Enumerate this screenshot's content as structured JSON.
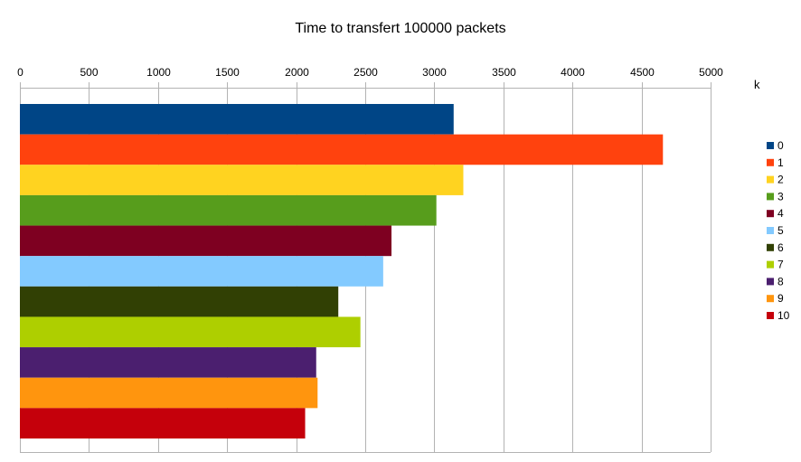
{
  "chart_data": {
    "type": "bar",
    "orientation": "horizontal",
    "title": "Time to transfert 100000 packets",
    "x_axis_position": "top",
    "xlim": [
      0,
      5000
    ],
    "xticks": [
      "0",
      "500",
      "1000",
      "1500",
      "2000",
      "2500",
      "3000",
      "3500",
      "4000",
      "4500",
      "5000"
    ],
    "grid": true,
    "legend": {
      "title": "k",
      "placement": "right"
    },
    "series": [
      {
        "name": "0",
        "value": 3140,
        "color": "#004586"
      },
      {
        "name": "1",
        "value": 4655,
        "color": "#ff420e"
      },
      {
        "name": "2",
        "value": 3210,
        "color": "#ffd320"
      },
      {
        "name": "3",
        "value": 3015,
        "color": "#579d1c"
      },
      {
        "name": "4",
        "value": 2690,
        "color": "#7e0021"
      },
      {
        "name": "5",
        "value": 2630,
        "color": "#83caff"
      },
      {
        "name": "6",
        "value": 2305,
        "color": "#314004"
      },
      {
        "name": "7",
        "value": 2465,
        "color": "#aecf00"
      },
      {
        "name": "8",
        "value": 2145,
        "color": "#4b1f6f"
      },
      {
        "name": "9",
        "value": 2155,
        "color": "#ff950e"
      },
      {
        "name": "10",
        "value": 2065,
        "color": "#c5000b"
      }
    ]
  }
}
